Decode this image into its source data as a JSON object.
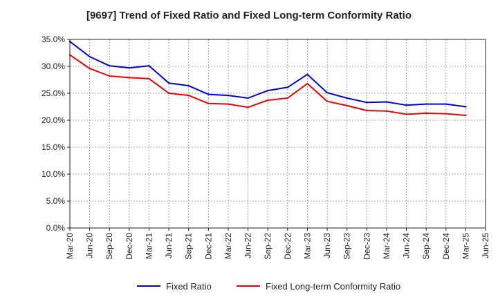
{
  "chart_data": {
    "type": "line",
    "title": "[9697]  Trend of Fixed Ratio and Fixed Long-term Conformity Ratio",
    "xlabel": "",
    "ylabel": "",
    "ylim": [
      0,
      35
    ],
    "y_ticks": [
      "0.0%",
      "5.0%",
      "10.0%",
      "15.0%",
      "20.0%",
      "25.0%",
      "30.0%",
      "35.0%"
    ],
    "y_tick_values": [
      0,
      5,
      10,
      15,
      20,
      25,
      30,
      35
    ],
    "categories": [
      "Mar-20",
      "Jun-20",
      "Sep-20",
      "Dec-20",
      "Mar-21",
      "Jun-21",
      "Sep-21",
      "Dec-21",
      "Mar-22",
      "Jun-22",
      "Sep-22",
      "Dec-22",
      "Mar-23",
      "Jun-23",
      "Sep-23",
      "Dec-23",
      "Mar-24",
      "Jun-24",
      "Sep-24",
      "Dec-24",
      "Mar-25",
      "Jun-25"
    ],
    "grid": true,
    "legend_position": "bottom",
    "series": [
      {
        "name": "Fixed Ratio",
        "color": "#0000dd",
        "values": [
          34.6,
          31.8,
          30.1,
          29.7,
          30.1,
          26.9,
          26.4,
          24.8,
          24.6,
          24.1,
          25.5,
          26.1,
          28.5,
          25.1,
          24.1,
          23.3,
          23.4,
          22.8,
          23.0,
          23.0,
          22.5,
          null
        ]
      },
      {
        "name": "Fixed Long-term Conformity Ratio",
        "color": "#ee0000",
        "values": [
          32.1,
          29.6,
          28.2,
          27.9,
          27.7,
          25.0,
          24.6,
          23.1,
          23.0,
          22.4,
          23.7,
          24.1,
          26.8,
          23.5,
          22.7,
          21.8,
          21.7,
          21.1,
          21.3,
          21.2,
          20.9,
          null
        ]
      }
    ]
  }
}
